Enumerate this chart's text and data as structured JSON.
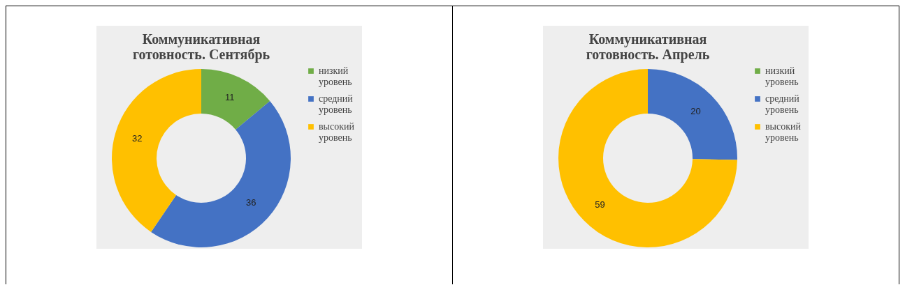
{
  "chart_data": [
    {
      "type": "donut",
      "title": "Коммуникативная готовность. Сентябрь",
      "categories": [
        "низкий уровень",
        "средний уровень",
        "высокий уровень"
      ],
      "values": [
        11,
        36,
        32
      ],
      "colors": [
        "#70ad47",
        "#4472c4",
        "#ffc000"
      ],
      "value_labels": [
        "11",
        "36",
        "32"
      ],
      "legend": "right"
    },
    {
      "type": "donut",
      "title": "Коммуникативная готовность. Апрель",
      "categories": [
        "низкий уровень",
        "средний уровень",
        "высокий уровень"
      ],
      "values": [
        0,
        20,
        59
      ],
      "colors": [
        "#70ad47",
        "#4472c4",
        "#ffc000"
      ],
      "value_labels": [
        null,
        "20",
        "59"
      ],
      "legend": "right"
    }
  ]
}
